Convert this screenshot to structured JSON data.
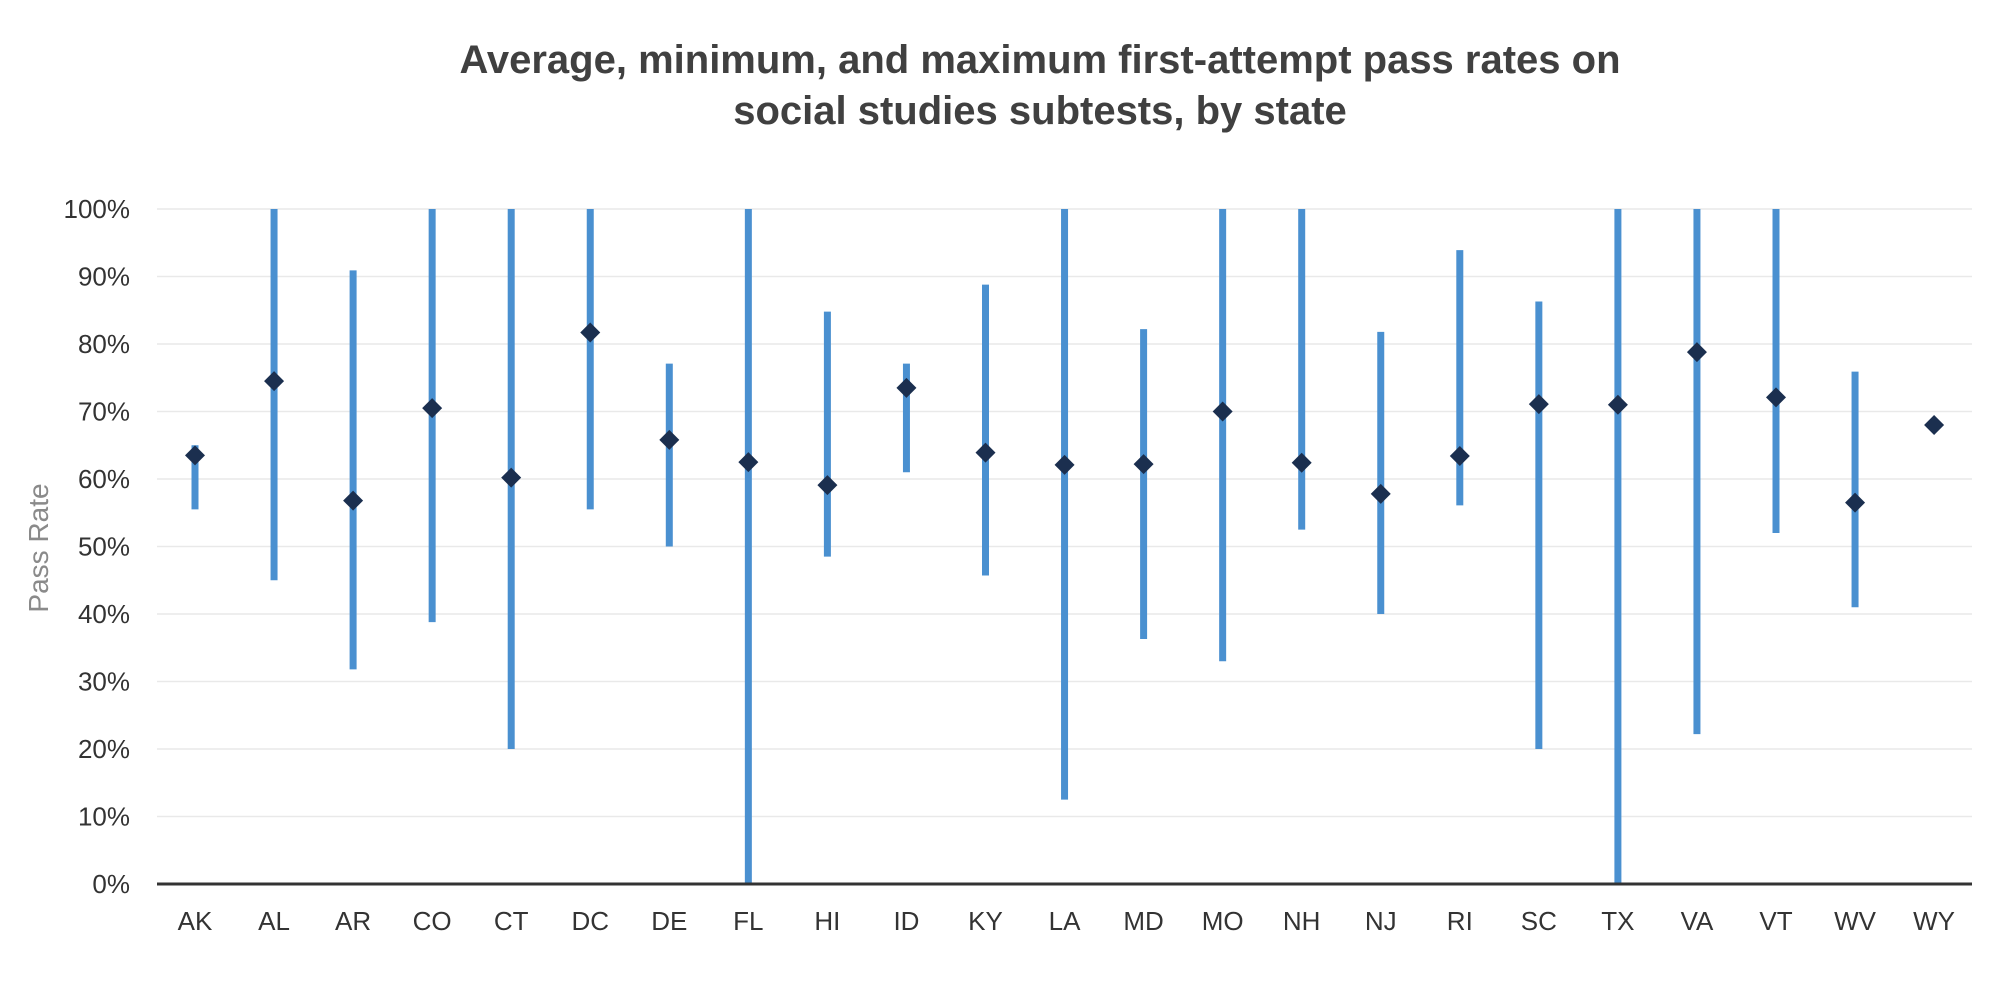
{
  "chart_data": {
    "type": "range-dot",
    "title": [
      "Average, minimum, and maximum first-attempt pass rates on",
      "social studies subtests, by state"
    ],
    "ylabel": "Pass Rate",
    "xlabel": "",
    "ylim": [
      0,
      100
    ],
    "yticks": [
      0,
      10,
      20,
      30,
      40,
      50,
      60,
      70,
      80,
      90,
      100
    ],
    "ytick_suffix": "%",
    "grid": true,
    "colors": {
      "range": "#4a90d0",
      "average": "#1b2f4f",
      "grid": "#e9e9e9",
      "axis": "#333333"
    },
    "categories": [
      "AK",
      "AL",
      "AR",
      "CO",
      "CT",
      "DC",
      "DE",
      "FL",
      "HI",
      "ID",
      "KY",
      "LA",
      "MD",
      "MO",
      "NH",
      "NJ",
      "RI",
      "SC",
      "TX",
      "VA",
      "VT",
      "WV",
      "WY"
    ],
    "series": [
      {
        "name": "Average",
        "values": [
          63.5,
          74.5,
          56.8,
          70.5,
          60.2,
          81.7,
          65.8,
          62.5,
          59.1,
          73.5,
          63.9,
          62.1,
          62.2,
          70.0,
          62.4,
          57.8,
          63.4,
          71.1,
          71.0,
          78.8,
          72.1,
          56.5,
          68.0
        ]
      },
      {
        "name": "Minimum",
        "values": [
          55.5,
          45.0,
          31.8,
          38.8,
          20.0,
          55.5,
          50.0,
          0.0,
          48.5,
          61.0,
          45.7,
          12.5,
          36.3,
          33.0,
          52.5,
          40.0,
          56.1,
          20.0,
          0.0,
          22.2,
          52.0,
          41.0,
          68.0
        ]
      },
      {
        "name": "Maximum",
        "values": [
          65.0,
          100.0,
          90.9,
          100.0,
          100.0,
          100.0,
          77.1,
          100.0,
          84.8,
          77.1,
          88.8,
          100.0,
          82.2,
          100.0,
          100.0,
          81.8,
          93.9,
          86.3,
          100.0,
          100.0,
          100.0,
          75.9,
          68.0
        ]
      }
    ]
  }
}
